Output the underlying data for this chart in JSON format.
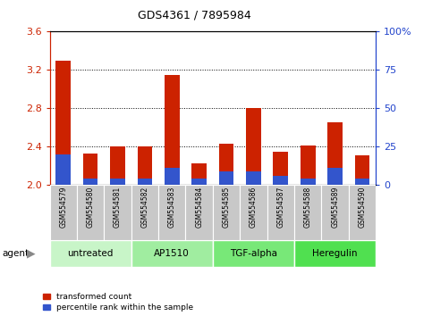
{
  "title": "GDS4361 / 7895984",
  "samples": [
    "GSM554579",
    "GSM554580",
    "GSM554581",
    "GSM554582",
    "GSM554583",
    "GSM554584",
    "GSM554585",
    "GSM554586",
    "GSM554587",
    "GSM554588",
    "GSM554589",
    "GSM554590"
  ],
  "red_values": [
    3.3,
    2.33,
    2.4,
    2.4,
    3.15,
    2.22,
    2.43,
    2.8,
    2.35,
    2.41,
    2.65,
    2.31
  ],
  "blue_pct": [
    20,
    4,
    4,
    4,
    11,
    4,
    9,
    9,
    6,
    4,
    11,
    4
  ],
  "ymin": 2.0,
  "ymax": 3.6,
  "y2min": 0,
  "y2max": 100,
  "yticks": [
    2.0,
    2.4,
    2.8,
    3.2,
    3.6
  ],
  "y2ticks": [
    0,
    25,
    50,
    75,
    100
  ],
  "groups": [
    {
      "label": "untreated",
      "start": 0,
      "end": 3,
      "color": "#c8f5c8"
    },
    {
      "label": "AP1510",
      "start": 3,
      "end": 6,
      "color": "#a0eda0"
    },
    {
      "label": "TGF-alpha",
      "start": 6,
      "end": 9,
      "color": "#78e878"
    },
    {
      "label": "Heregulin",
      "start": 9,
      "end": 12,
      "color": "#50e050"
    }
  ],
  "bar_color_red": "#cc2200",
  "bar_color_blue": "#3355cc",
  "bar_width": 0.55,
  "bg_plot": "#ffffff",
  "bg_tick": "#c8c8c8",
  "legend_labels": [
    "transformed count",
    "percentile rank within the sample"
  ],
  "agent_label": "agent",
  "grid_color": "#000000",
  "ylabel_color_red": "#cc2200",
  "ylabel_color_blue": "#2244cc",
  "title_fontsize": 9
}
